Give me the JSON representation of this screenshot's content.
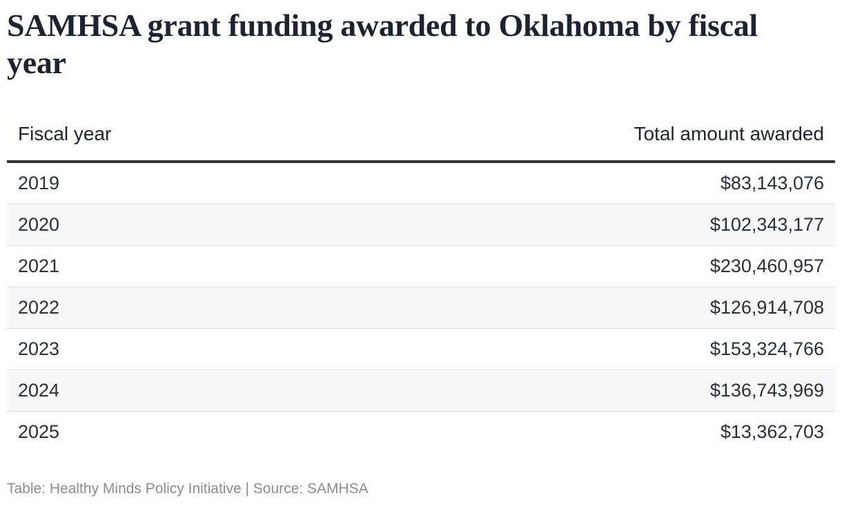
{
  "chart_data": {
    "type": "table",
    "title": "SAMHSA grant funding awarded to Oklahoma by fiscal year",
    "columns": [
      "Fiscal year",
      "Total amount awarded"
    ],
    "rows": [
      {
        "year": "2019",
        "amount": "$83,143,076"
      },
      {
        "year": "2020",
        "amount": "$102,343,177"
      },
      {
        "year": "2021",
        "amount": "$230,460,957"
      },
      {
        "year": "2022",
        "amount": "$126,914,708"
      },
      {
        "year": "2023",
        "amount": "$153,324,766"
      },
      {
        "year": "2024",
        "amount": "$136,743,969"
      },
      {
        "year": "2025",
        "amount": "$13,362,703"
      }
    ],
    "footer": "Table: Healthy Minds Policy Initiative | Source: SAMHSA"
  }
}
